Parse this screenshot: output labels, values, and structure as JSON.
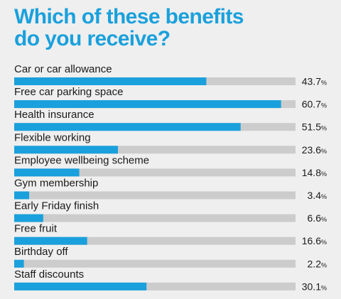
{
  "title_line1": "Which of these benefits",
  "title_line2": "do you receive?",
  "colors": {
    "accent": "#1aa0dc",
    "track": "#cccccc",
    "text": "#1a1a1a",
    "background": "#efefef"
  },
  "chart_data": {
    "type": "bar",
    "orientation": "horizontal",
    "title": "Which of these benefits do you receive?",
    "categories": [
      "Car or car allowance",
      "Free car parking space",
      "Health insurance",
      "Flexible working",
      "Employee wellbeing scheme",
      "Gym membership",
      "Early Friday finish",
      "Free fruit",
      "Birthday off",
      "Staff discounts"
    ],
    "values": [
      43.7,
      60.7,
      51.5,
      23.6,
      14.8,
      3.4,
      6.6,
      16.6,
      2.2,
      30.1
    ],
    "value_labels": [
      "43.7",
      "60.7",
      "51.5",
      "23.6",
      "14.8",
      "3.4",
      "6.6",
      "16.6",
      "2.2",
      "30.1"
    ],
    "unit": "%",
    "xlim": [
      0,
      64
    ],
    "grid": false,
    "legend": "none"
  }
}
